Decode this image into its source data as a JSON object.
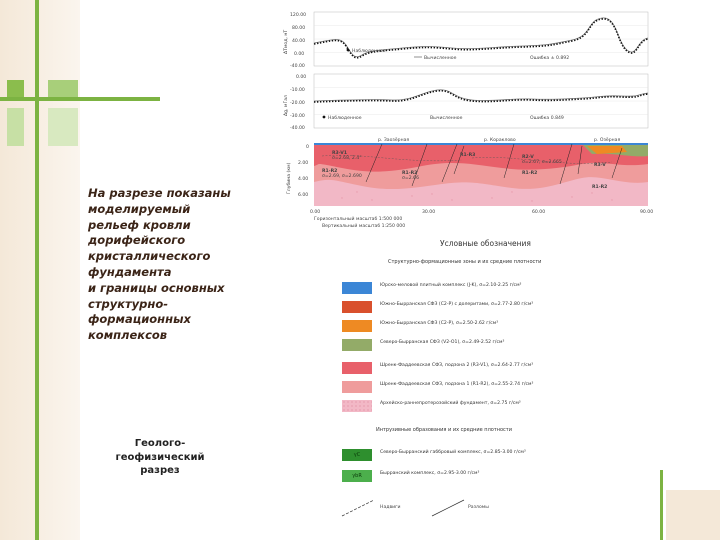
{
  "caption": {
    "lines": [
      "На разрезе показаны",
      "моделируемый",
      "рельеф кровли",
      "дорифейского",
      "кристаллического",
      "фундамента",
      "и границы основных",
      "структурно-",
      "формационных",
      "комплексов"
    ]
  },
  "subcaption": {
    "lines": [
      "Геолого-",
      "геофизический",
      "разрез"
    ]
  },
  "magnetic_panel": {
    "y_ticks": [
      "120.00",
      "80.00",
      "40.00",
      "0.00",
      "-40.00"
    ],
    "ylabel": "ΔTмод, нТ",
    "legend_observed": "Наблюденное",
    "legend_calculated": "Вычисленное",
    "error_text": "Ошибка ± 0.892"
  },
  "gravity_panel": {
    "y_ticks": [
      "0.00",
      "-10.00",
      "-20.00",
      "-30.00",
      "-40.00"
    ],
    "ylabel": "Δg, мГал",
    "legend_observed": "Наблюденное",
    "legend_calculated": "Вычисленное",
    "error_text": "Ошибка 0.849"
  },
  "section": {
    "ylabel": "Глубина (км)",
    "y_ticks": [
      "0",
      "2.00",
      "4.00",
      "6.00"
    ],
    "x_ticks": [
      "0.00",
      "30.00",
      "60.00",
      "90.00"
    ],
    "top_labels": [
      "р. Заозёрная",
      "р. Кораклово",
      "р. Озёрная"
    ],
    "units": [
      {
        "name": "R3-V1",
        "sub": "σ=2.68, 2.4°"
      },
      {
        "name": "R1-R2",
        "sub": "σ=2.69, σ=2.690"
      },
      {
        "name": "R1-R3",
        "sub": ""
      },
      {
        "name": "R1-R2",
        "sub": "σ=2.66"
      },
      {
        "name": "R2-V",
        "sub": "σ=2.67, σ=2.665"
      },
      {
        "name": "R1-R2",
        "sub": ""
      },
      {
        "name": "R3-V",
        "sub": ""
      },
      {
        "name": "R1-R2",
        "sub": ""
      }
    ],
    "scale_h": "Горизонтальный масштаб 1:500 000",
    "scale_v": "Вертикальный масштаб 1:250 000"
  },
  "legend": {
    "title": "Условные обозначения",
    "subtitle": "Структурно-формационные зоны и их средние плотности",
    "items": [
      {
        "color": "#3b86d6",
        "text": "Юрско-меловой плитный комплекс (J-K), σ=2.10-2.25 г/см³"
      },
      {
        "color": "#d9502d",
        "text": "Южно-Бырранская СФЗ (C2-P) с долеритами, σ=2.77-2.80 г/см³"
      },
      {
        "color": "#ee8a23",
        "text": "Южно-Бырранская СФЗ (C2-P), σ=2.50-2.62 г/см³"
      },
      {
        "color": "#93ab68",
        "text": "Северо-Бырранская СФЗ (V2-O1), σ=2.49-2.52 г/см³"
      },
      {
        "color": "#e8606a",
        "text": "Шренк-Фаддеевская СФЗ, подзона 2 (R3-V1), σ=2.64-2.77 г/см³"
      },
      {
        "color": "#ef9c9c",
        "text": "Шренк-Фаддеевская СФЗ, подзона 1 (R1-R2), σ=2.55-2.74 г/см³"
      },
      {
        "color": "#f2b8c6",
        "text": "Архейско-раннепротерозойский фундамент, σ=2.75 г/см³"
      }
    ],
    "intrusive_title": "Интрузивные образования и их средние плотности",
    "intrusive_items": [
      {
        "color": "#2e8f2e",
        "code": "γC",
        "text": "Северо-Бырранский габбровый комплекс, σ=2.85-3.00 г/см³"
      },
      {
        "color": "#4caf4c",
        "code": "γbR",
        "text": "Бырранский комплекс, σ=2.95-3.00 г/см³"
      }
    ],
    "line_labels": [
      "Надвиги",
      "Разломы"
    ]
  },
  "colors": {
    "accent_green": "#7cb342",
    "accent_tan": "#e6c9a0",
    "caption_color": "#3b2417"
  }
}
